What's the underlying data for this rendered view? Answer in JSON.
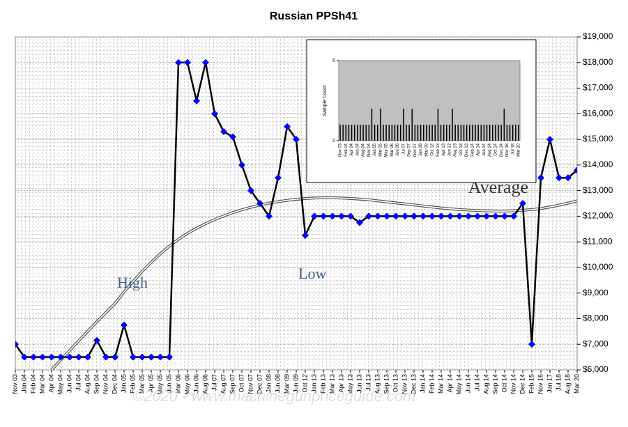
{
  "chart_data": [
    {
      "type": "line",
      "title": "Russian PPSh41",
      "categories": [
        "Nov 03",
        "Jan 04",
        "Feb 04",
        "Mar 04",
        "Apr 04",
        "May 04",
        "Jun 04",
        "Jul 04",
        "Aug 04",
        "Sep 04",
        "Nov 04",
        "Dec 04",
        "Jan 05",
        "Feb 05",
        "Mar 05",
        "Apr 05",
        "May 05",
        "Jun 05",
        "Mar 06",
        "May 06",
        "Jun 06",
        "Aug 06",
        "Jul 07",
        "Aug 07",
        "Sep 07",
        "Oct 07",
        "Nov 07",
        "Dec 07",
        "Jan 08",
        "Jun 08",
        "Mar 09",
        "Jun 09",
        "Oct 12",
        "Jan 13",
        "Feb 13",
        "Mar 13",
        "Apr 13",
        "May 13",
        "Jun 13",
        "Jul 13",
        "Aug 13",
        "Sep 13",
        "Oct 13",
        "Nov 13",
        "Dec 13",
        "Jan 14",
        "Feb 14",
        "Mar 14",
        "Apr 14",
        "May 14",
        "Jun 14",
        "Jul 14",
        "Aug 14",
        "Sep 14",
        "Oct 14",
        "Nov 14",
        "Dec 14",
        "Feb 15",
        "Nov 16",
        "Jan 17",
        "Jul 18",
        "Aug 18",
        "Mar 20"
      ],
      "series": [
        {
          "color": "#0000ff",
          "values": [
            7000,
            6500,
            6500,
            6500,
            6500,
            6500,
            6500,
            6500,
            6500,
            7150,
            6500,
            6500,
            7750,
            6500,
            6500,
            6500,
            6500,
            6500,
            18000,
            18000,
            16500,
            18000,
            16000,
            15300,
            15100,
            14000,
            13000,
            12500,
            12000,
            13500,
            15500,
            15000,
            11250,
            12000,
            12000,
            12000,
            12000,
            12000,
            11750,
            12000,
            12000,
            12000,
            12000,
            12000,
            12000,
            12000,
            12000,
            12000,
            12000,
            12000,
            12000,
            12000,
            12000,
            12000,
            12000,
            12000,
            12500,
            7000,
            13500,
            15000,
            13500,
            13500,
            13800
          ]
        },
        {
          "name": "Average",
          "color": "#555555",
          "values": [
            null,
            null,
            null,
            null,
            6000,
            6380,
            6760,
            7140,
            7510,
            7880,
            8240,
            8590,
            9050,
            9450,
            9850,
            10200,
            10530,
            10830,
            11100,
            11330,
            11530,
            11710,
            11870,
            12010,
            12140,
            12250,
            12350,
            12440,
            12510,
            12570,
            12620,
            12660,
            12690,
            12710,
            12720,
            12720,
            12710,
            12690,
            12670,
            12640,
            12600,
            12560,
            12520,
            12480,
            12440,
            12400,
            12360,
            12320,
            12290,
            12260,
            12240,
            12220,
            12210,
            12200,
            12200,
            12210,
            12230,
            12260,
            12300,
            12360,
            12430,
            12510,
            12600
          ]
        }
      ],
      "annotations": [
        "High",
        "Low"
      ],
      "watermark": "©2020 - www.machinegunpriceguide.com",
      "ylim": [
        6000,
        19000
      ],
      "yticks": [
        {
          "value": 6000,
          "label": "$6,000"
        },
        {
          "value": 7000,
          "label": "$7,000"
        },
        {
          "value": 8000,
          "label": "$8,000"
        },
        {
          "value": 9000,
          "label": "$9,000"
        },
        {
          "value": 10000,
          "label": "$10,000"
        },
        {
          "value": 11000,
          "label": "$11,000"
        },
        {
          "value": 12000,
          "label": "$12,000"
        },
        {
          "value": 13000,
          "label": "$13,000"
        },
        {
          "value": 14000,
          "label": "$14,000"
        },
        {
          "value": 15000,
          "label": "$15,000"
        },
        {
          "value": 16000,
          "label": "$16,000"
        },
        {
          "value": 17000,
          "label": "$17,000"
        },
        {
          "value": 18000,
          "label": "$18,000"
        },
        {
          "value": 19000,
          "label": "$19,000"
        }
      ],
      "grid": true
    },
    {
      "type": "bar",
      "ylabel": "Sample Count",
      "categories": [
        "Nov 03",
        null,
        "Feb 04",
        null,
        "Apr 04",
        null,
        "Jun 04",
        null,
        "Aug 04",
        null,
        "Nov 04",
        null,
        "Jan 05",
        null,
        "Mar 05",
        null,
        "May 05",
        null,
        "Mar 06",
        null,
        "Jun 06",
        null,
        "Jul 07",
        null,
        "Sep 07",
        null,
        "Nov 07",
        null,
        "Jan 08",
        null,
        "Mar 09",
        null,
        "Oct 12",
        null,
        "Feb 13",
        null,
        "Apr 13",
        null,
        "Jun 13",
        null,
        "Aug 13",
        null,
        "Oct 13",
        null,
        "Dec 13",
        null,
        "Feb 14",
        null,
        "Apr 14",
        null,
        "Jun 14",
        null,
        "Aug 14",
        null,
        "Oct 14",
        null,
        "Dec 14",
        null,
        "Nov 16",
        null,
        "Jul 18",
        null,
        "Mar 20"
      ],
      "values": [
        1,
        1,
        1,
        1,
        1,
        1,
        1,
        1,
        1,
        1,
        1,
        2,
        1,
        1,
        2,
        1,
        1,
        1,
        1,
        1,
        1,
        1,
        2,
        1,
        1,
        2,
        1,
        1,
        1,
        1,
        1,
        1,
        1,
        1,
        2,
        1,
        1,
        1,
        1,
        2,
        1,
        1,
        1,
        1,
        1,
        1,
        1,
        1,
        1,
        1,
        1,
        1,
        1,
        1,
        1,
        1,
        1,
        2,
        1,
        1,
        1,
        1,
        1
      ],
      "color": "#000000",
      "ylim": [
        0,
        5
      ],
      "yticks": [
        0,
        5
      ]
    }
  ]
}
